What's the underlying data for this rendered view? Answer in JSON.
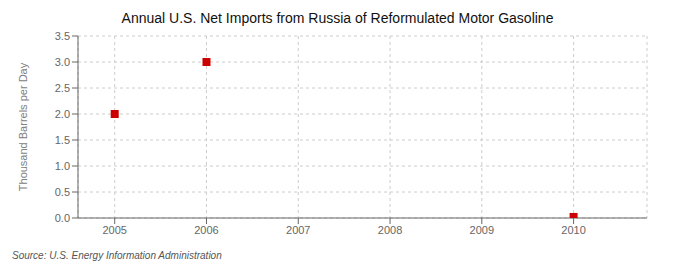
{
  "chart_data": {
    "type": "scatter",
    "title": "Annual U.S. Net Imports from Russia of Reformulated Motor Gasoline",
    "y_label": "Thousand Barrels per Day",
    "annotations": [
      "Source: U.S. Energy Information Administration"
    ],
    "x": [
      2005,
      2006,
      2010
    ],
    "values": [
      2.0,
      3.0,
      0.02
    ],
    "color": "#cc0000",
    "marker": "square",
    "xlim": [
      2004.6,
      2010.8
    ],
    "xticks": [
      2005,
      2006,
      2007,
      2008,
      2009,
      2010
    ],
    "ylim": [
      0.0,
      3.5
    ],
    "yticks": [
      {
        "value": 0.0,
        "label": "0.0"
      },
      0.5,
      {
        "value": 1.0,
        "label": "1.0"
      },
      1.5,
      {
        "value": 2.0,
        "label": "2.0"
      },
      2.5,
      {
        "value": 3.0,
        "label": "3.0"
      },
      3.5
    ],
    "grid": true
  }
}
